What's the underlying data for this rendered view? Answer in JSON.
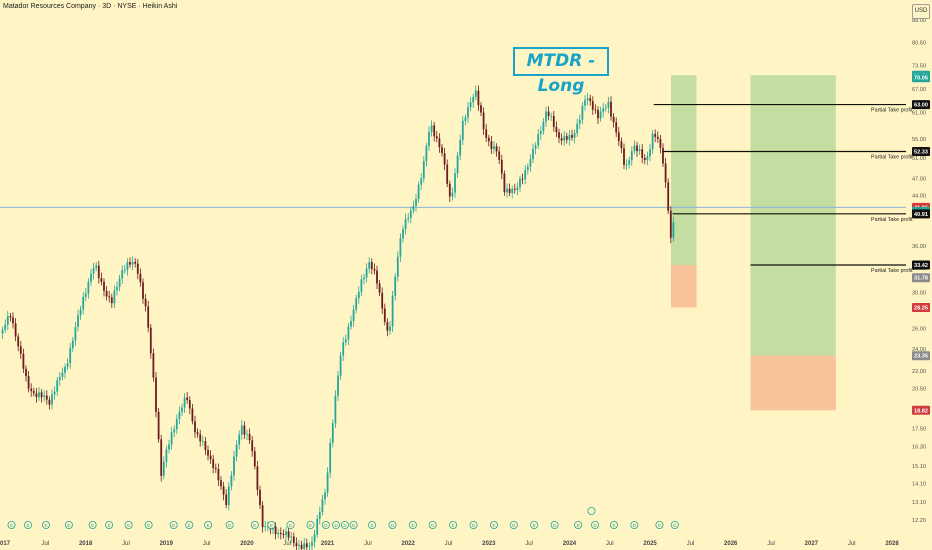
{
  "header": {
    "text": "Matador Resources Company · 3D · NYSE · Heikin Ashi"
  },
  "title": "MTDR - Long",
  "currency": "USD",
  "colors": {
    "background": "#fff5c4",
    "up": "#26a69a",
    "down": "#6d1c1c",
    "profit_zone": "#b8d99a",
    "loss_zone": "#f7bc97",
    "title": "#18a3c8"
  },
  "chart_data": {
    "type": "candlestick",
    "scale": "log",
    "ylim": [
      12.2,
      88.0
    ],
    "y_ticks": [
      12.2,
      13.1,
      14.1,
      15.1,
      16.3,
      17.5,
      18.8,
      20.5,
      22.0,
      24.0,
      26.0,
      28.0,
      30.0,
      33.0,
      36.0,
      40.5,
      44.0,
      47.0,
      51.0,
      55.0,
      61.0,
      67.0,
      73.5,
      80.5,
      88.0
    ],
    "x_axis": {
      "labels": [
        "017",
        "Jul",
        "2018",
        "Jul",
        "2019",
        "Jul",
        "2020",
        "Jul",
        "2021",
        "Jul",
        "2022",
        "Jul",
        "2023",
        "Jul",
        "2024",
        "Jul",
        "2025",
        "Jul",
        "2026",
        "Jul",
        "2027",
        "Jul",
        "2028"
      ],
      "start_date": "2016-12-30",
      "end_date": "2028-03-01"
    },
    "price_path": [
      [
        "2016-12-30",
        25.5
      ],
      [
        "2017-02-15",
        27.0
      ],
      [
        "2017-05-01",
        21.0
      ],
      [
        "2017-08-10",
        19.2
      ],
      [
        "2017-10-20",
        22.5
      ],
      [
        "2018-01-01",
        28.5
      ],
      [
        "2018-03-01",
        33.0
      ],
      [
        "2018-05-15",
        29.0
      ],
      [
        "2018-07-01",
        32.5
      ],
      [
        "2018-09-05",
        33.5
      ],
      [
        "2018-10-20",
        28.0
      ],
      [
        "2018-12-25",
        14.4
      ],
      [
        "2019-03-01",
        18.0
      ],
      [
        "2019-04-20",
        20.2
      ],
      [
        "2019-06-01",
        17.0
      ],
      [
        "2019-08-20",
        15.0
      ],
      [
        "2019-10-15",
        13.3
      ],
      [
        "2019-12-20",
        17.5
      ],
      [
        "2020-02-01",
        16.5
      ],
      [
        "2020-03-25",
        12.2
      ],
      [
        "2020-06-01",
        11.5
      ],
      [
        "2020-10-30",
        11.0
      ],
      [
        "2021-01-05",
        13.5
      ],
      [
        "2021-03-15",
        24.0
      ],
      [
        "2021-05-20",
        28.5
      ],
      [
        "2021-07-20",
        34.0
      ],
      [
        "2021-08-20",
        32.0
      ],
      [
        "2021-10-15",
        25.0
      ],
      [
        "2021-12-15",
        38.5
      ],
      [
        "2022-02-01",
        42.0
      ],
      [
        "2022-03-20",
        50.0
      ],
      [
        "2022-04-20",
        57.5
      ],
      [
        "2022-06-10",
        52.0
      ],
      [
        "2022-07-20",
        43.0
      ],
      [
        "2022-09-10",
        58.0
      ],
      [
        "2022-11-08",
        66.0
      ],
      [
        "2022-12-20",
        56.0
      ],
      [
        "2023-02-15",
        53.0
      ],
      [
        "2023-03-20",
        45.0
      ],
      [
        "2023-05-10",
        44.0
      ],
      [
        "2023-07-20",
        52.0
      ],
      [
        "2023-09-25",
        61.0
      ],
      [
        "2023-11-15",
        55.0
      ],
      [
        "2024-01-20",
        56.0
      ],
      [
        "2024-03-20",
        64.0
      ],
      [
        "2024-05-15",
        60.0
      ],
      [
        "2024-07-01",
        64.0
      ],
      [
        "2024-08-10",
        56.0
      ],
      [
        "2024-09-15",
        48.0
      ],
      [
        "2024-10-20",
        53.0
      ],
      [
        "2024-12-15",
        51.0
      ],
      [
        "2025-01-20",
        57.0
      ],
      [
        "2025-02-25",
        52.0
      ],
      [
        "2025-03-25",
        42.0
      ],
      [
        "2025-04-08",
        36.0
      ],
      [
        "2025-04-25",
        40.9
      ]
    ],
    "positions": [
      {
        "name": "trade-1",
        "x_start": "2025-04-08",
        "x_end": "2025-08-01",
        "entry": 33.42,
        "target": 70.74,
        "stop": 28.25
      },
      {
        "name": "trade-2",
        "x_start": "2026-04-01",
        "x_end": "2027-04-20",
        "entry": 23.35,
        "target": 70.74,
        "stop": 18.82
      }
    ],
    "take_profit_lines": [
      {
        "price": 63.0,
        "x_start": "2025-01-20",
        "label": "Partial Take profit"
      },
      {
        "price": 52.33,
        "x_start": "2025-03-01",
        "label": "Partial Take profit"
      },
      {
        "price": 40.91,
        "x_start": "2025-04-15",
        "label": "Partial Take profit"
      },
      {
        "price": 33.42,
        "x_start": "2026-04-01",
        "label": "Partial Take profit"
      }
    ],
    "price_labels": [
      {
        "value": "70.74",
        "color": "#26a69a"
      },
      {
        "value": "70.05",
        "color": "#26a69a"
      },
      {
        "value": "63.00",
        "color": "#111111"
      },
      {
        "value": "52.33",
        "color": "#111111"
      },
      {
        "value": "41.96",
        "color": "#d03c3c"
      },
      {
        "value": "41.31",
        "color": "#26a69a"
      },
      {
        "value": "40.91",
        "color": "#111111"
      },
      {
        "value": "33.42",
        "color": "#111111"
      },
      {
        "value": "31.78",
        "color": "#8a8a8a"
      },
      {
        "value": "28.25",
        "color": "#d03c3c"
      },
      {
        "value": "23.35",
        "color": "#8a8a8a"
      },
      {
        "value": "18.82",
        "color": "#d03c3c"
      }
    ],
    "current_price": 41.96,
    "events": [
      {
        "date": "2017-02-20",
        "type": "E"
      },
      {
        "date": "2017-05-05",
        "type": "E"
      },
      {
        "date": "2017-07-25",
        "type": "E"
      },
      {
        "date": "2017-11-05",
        "type": "E"
      },
      {
        "date": "2018-02-20",
        "type": "E"
      },
      {
        "date": "2018-05-05",
        "type": "E"
      },
      {
        "date": "2018-08-01",
        "type": "E"
      },
      {
        "date": "2018-10-30",
        "type": "E"
      },
      {
        "date": "2019-02-20",
        "type": "E"
      },
      {
        "date": "2019-05-01",
        "type": "E"
      },
      {
        "date": "2019-07-25",
        "type": "E"
      },
      {
        "date": "2019-10-30",
        "type": "E"
      },
      {
        "date": "2020-02-20",
        "type": "E"
      },
      {
        "date": "2020-05-05",
        "type": "E"
      },
      {
        "date": "2020-07-30",
        "type": "E"
      },
      {
        "date": "2020-10-28",
        "type": "E"
      },
      {
        "date": "2021-01-05",
        "type": "D"
      },
      {
        "date": "2021-02-20",
        "type": "D"
      },
      {
        "date": "2021-04-01",
        "type": "D"
      },
      {
        "date": "2021-05-10",
        "type": "D"
      },
      {
        "date": "2021-08-01",
        "type": "E"
      },
      {
        "date": "2021-11-01",
        "type": "D"
      },
      {
        "date": "2022-02-01",
        "type": "E"
      },
      {
        "date": "2022-05-01",
        "type": "D"
      },
      {
        "date": "2022-08-01",
        "type": "E"
      },
      {
        "date": "2022-11-01",
        "type": "D"
      },
      {
        "date": "2023-02-01",
        "type": "E"
      },
      {
        "date": "2023-05-01",
        "type": "D"
      },
      {
        "date": "2023-08-01",
        "type": "E"
      },
      {
        "date": "2023-11-01",
        "type": "D"
      },
      {
        "date": "2024-02-15",
        "type": "E"
      },
      {
        "date": "2024-05-01",
        "type": "D"
      },
      {
        "date": "2024-07-25",
        "type": "E"
      },
      {
        "date": "2024-10-25",
        "type": "D"
      },
      {
        "date": "2025-02-15",
        "type": "E"
      },
      {
        "date": "2025-04-25",
        "type": "D"
      }
    ],
    "split_marker_date": "2024-04-15"
  }
}
